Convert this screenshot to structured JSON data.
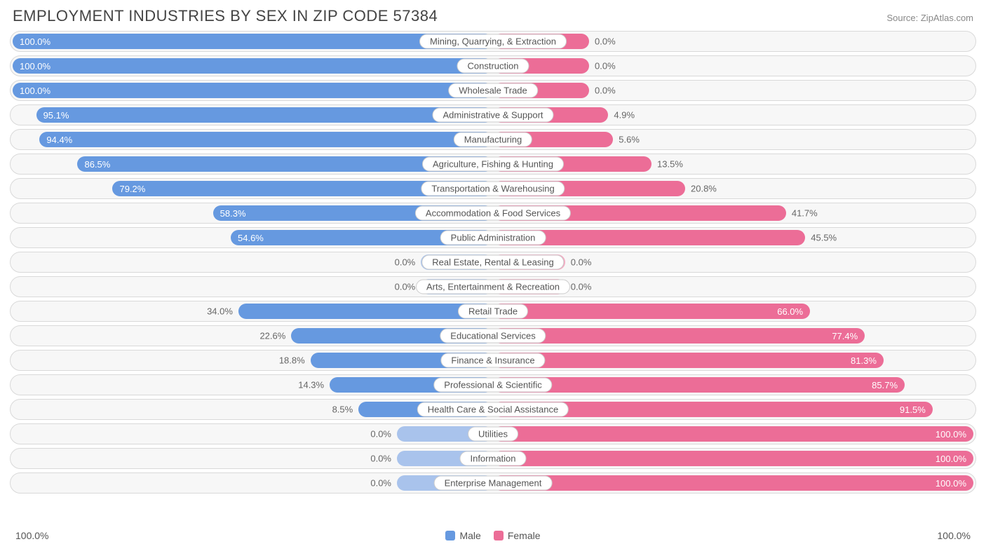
{
  "title": "EMPLOYMENT INDUSTRIES BY SEX IN ZIP CODE 57384",
  "source": "Source: ZipAtlas.com",
  "chart": {
    "type": "diverging-bar",
    "male_color": "#6699e0",
    "female_color": "#ec6d97",
    "male_fade_color": "#a9c3ec",
    "female_fade_color": "#f4aac2",
    "track_bg": "#f7f7f7",
    "track_border": "#d9d9d9",
    "label_bg": "#ffffff",
    "label_border": "#cccccc",
    "text_color": "#555555",
    "axis_left": "100.0%",
    "axis_right": "100.0%",
    "legend": [
      {
        "label": "Male",
        "color": "#6699e0"
      },
      {
        "label": "Female",
        "color": "#ec6d97"
      }
    ],
    "rows": [
      {
        "label": "Mining, Quarrying, & Extraction",
        "male": 100.0,
        "female": 0.0,
        "female_bar": 20,
        "fade": false
      },
      {
        "label": "Construction",
        "male": 100.0,
        "female": 0.0,
        "female_bar": 20,
        "fade": false
      },
      {
        "label": "Wholesale Trade",
        "male": 100.0,
        "female": 0.0,
        "female_bar": 20,
        "fade": false
      },
      {
        "label": "Administrative & Support",
        "male": 95.1,
        "female": 4.9,
        "female_bar": 24,
        "fade": false
      },
      {
        "label": "Manufacturing",
        "male": 94.4,
        "female": 5.6,
        "female_bar": 25,
        "fade": false
      },
      {
        "label": "Agriculture, Fishing & Hunting",
        "male": 86.5,
        "female": 13.5,
        "female_bar": 33,
        "fade": false
      },
      {
        "label": "Transportation & Warehousing",
        "male": 79.2,
        "female": 20.8,
        "female_bar": 40,
        "fade": false
      },
      {
        "label": "Accommodation & Food Services",
        "male": 58.3,
        "female": 41.7,
        "female_bar": 61,
        "fade": false
      },
      {
        "label": "Public Administration",
        "male": 54.6,
        "female": 45.5,
        "female_bar": 65,
        "fade": false
      },
      {
        "label": "Real Estate, Rental & Leasing",
        "male": 0.0,
        "female": 0.0,
        "male_bar": 15,
        "female_bar": 15,
        "fade": true
      },
      {
        "label": "Arts, Entertainment & Recreation",
        "male": 0.0,
        "female": 0.0,
        "male_bar": 15,
        "female_bar": 15,
        "fade": true
      },
      {
        "label": "Retail Trade",
        "male": 34.0,
        "female": 66.0,
        "male_bar": 53,
        "fade": false
      },
      {
        "label": "Educational Services",
        "male": 22.6,
        "female": 77.4,
        "male_bar": 42,
        "fade": false
      },
      {
        "label": "Finance & Insurance",
        "male": 18.8,
        "female": 81.3,
        "male_bar": 38,
        "fade": false
      },
      {
        "label": "Professional & Scientific",
        "male": 14.3,
        "female": 85.7,
        "male_bar": 34,
        "fade": false
      },
      {
        "label": "Health Care & Social Assistance",
        "male": 8.5,
        "female": 91.5,
        "male_bar": 28,
        "fade": false
      },
      {
        "label": "Utilities",
        "male": 0.0,
        "female": 100.0,
        "male_bar": 20,
        "fade_male": true
      },
      {
        "label": "Information",
        "male": 0.0,
        "female": 100.0,
        "male_bar": 20,
        "fade_male": true
      },
      {
        "label": "Enterprise Management",
        "male": 0.0,
        "female": 100.0,
        "male_bar": 20,
        "fade_male": true
      }
    ]
  }
}
